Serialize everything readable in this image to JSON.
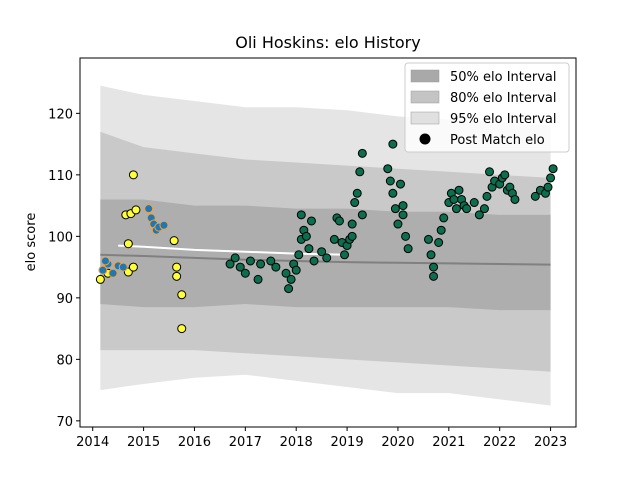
{
  "chart_data": {
    "type": "scatter",
    "title": "Oli Hoskins: elo History",
    "xlabel": "",
    "ylabel": "elo score",
    "xlim": [
      2013.75,
      2023.5
    ],
    "ylim": [
      69,
      129
    ],
    "x_ticks": [
      2014,
      2015,
      2016,
      2017,
      2018,
      2019,
      2020,
      2021,
      2022,
      2023
    ],
    "y_ticks": [
      70,
      80,
      90,
      100,
      110,
      120
    ],
    "grid": false,
    "legend_position": "top-right",
    "legend": [
      {
        "label": "50% elo Interval",
        "kind": "band",
        "color": "#a9a9a9"
      },
      {
        "label": "80% elo Interval",
        "kind": "band",
        "color": "#c4c4c4"
      },
      {
        "label": "95% elo Interval",
        "kind": "band",
        "color": "#e0e0e0"
      },
      {
        "label": "Post Match elo",
        "kind": "marker",
        "color": "#000000"
      }
    ],
    "series": [
      {
        "name": "95% elo Interval",
        "kind": "band",
        "color": "#e0e0e0",
        "x": [
          2014.15,
          2015.0,
          2016.0,
          2017.0,
          2018.0,
          2019.0,
          2020.0,
          2021.0,
          2022.0,
          2023.0
        ],
        "low": [
          75.0,
          76.0,
          77.0,
          77.5,
          76.5,
          75.5,
          74.5,
          74.5,
          73.5,
          72.5
        ],
        "high": [
          124.5,
          123.0,
          122.0,
          121.0,
          121.0,
          120.5,
          119.5,
          119.0,
          118.5,
          118.0
        ]
      },
      {
        "name": "80% elo Interval",
        "kind": "band",
        "color": "#c4c4c4",
        "x": [
          2014.15,
          2015.0,
          2016.0,
          2017.0,
          2018.0,
          2019.0,
          2020.0,
          2021.0,
          2022.0,
          2023.0
        ],
        "low": [
          81.5,
          81.5,
          81.5,
          81.0,
          80.5,
          80.0,
          79.5,
          79.0,
          78.5,
          78.0
        ],
        "high": [
          117.0,
          114.5,
          113.5,
          112.5,
          112.0,
          111.5,
          111.0,
          110.5,
          110.0,
          109.5
        ]
      },
      {
        "name": "50% elo Interval",
        "kind": "band",
        "color": "#a9a9a9",
        "x": [
          2014.15,
          2015.0,
          2016.0,
          2017.0,
          2018.0,
          2019.0,
          2020.0,
          2021.0,
          2022.0,
          2023.0
        ],
        "low": [
          89.0,
          88.5,
          88.5,
          89.0,
          88.5,
          88.5,
          88.5,
          88.5,
          88.0,
          88.0
        ],
        "high": [
          106.0,
          106.0,
          105.0,
          105.0,
          104.5,
          104.5,
          104.0,
          104.0,
          103.5,
          103.5
        ]
      },
      {
        "name": "Post Match elo",
        "kind": "points",
        "groups": [
          {
            "color": "#ffff33",
            "edge": "#000000",
            "points": [
              [
                2014.65,
                103.5
              ],
              [
                2014.75,
                103.7
              ],
              [
                2014.85,
                104.3
              ],
              [
                2014.8,
                110.0
              ],
              [
                2014.7,
                98.8
              ],
              [
                2014.7,
                94.2
              ],
              [
                2014.8,
                95.0
              ],
              [
                2015.6,
                99.3
              ],
              [
                2015.65,
                95.0
              ],
              [
                2015.65,
                93.5
              ],
              [
                2015.75,
                90.5
              ],
              [
                2015.75,
                85.0
              ],
              [
                2014.15,
                93.0
              ],
              [
                2014.3,
                94.0
              ]
            ]
          },
          {
            "color": "#1f78b4",
            "edge": "#f0a040",
            "points": [
              [
                2014.2,
                94.5
              ],
              [
                2014.3,
                95.5
              ],
              [
                2014.4,
                94.0
              ],
              [
                2014.5,
                95.2
              ],
              [
                2014.6,
                95.0
              ],
              [
                2014.25,
                96.0
              ],
              [
                2015.1,
                104.5
              ],
              [
                2015.15,
                103.0
              ],
              [
                2015.2,
                102.0
              ],
              [
                2015.25,
                101.0
              ],
              [
                2015.3,
                101.5
              ],
              [
                2015.4,
                101.8
              ]
            ]
          },
          {
            "color": "#0b6e4f",
            "edge": "#000000",
            "points": [
              [
                2016.7,
                95.5
              ],
              [
                2016.8,
                96.5
              ],
              [
                2016.9,
                95.0
              ],
              [
                2017.0,
                94.0
              ],
              [
                2017.1,
                96.0
              ],
              [
                2017.25,
                93.0
              ],
              [
                2017.3,
                95.5
              ],
              [
                2017.5,
                96.0
              ],
              [
                2017.6,
                95.0
              ],
              [
                2017.8,
                94.0
              ],
              [
                2017.85,
                91.5
              ],
              [
                2017.9,
                93.0
              ],
              [
                2017.95,
                95.5
              ],
              [
                2018.0,
                94.5
              ],
              [
                2018.05,
                97.0
              ],
              [
                2018.1,
                99.5
              ],
              [
                2018.1,
                103.5
              ],
              [
                2018.15,
                101.0
              ],
              [
                2018.2,
                100.0
              ],
              [
                2018.25,
                98.0
              ],
              [
                2018.3,
                102.5
              ],
              [
                2018.35,
                96.0
              ],
              [
                2018.5,
                97.5
              ],
              [
                2018.6,
                96.5
              ],
              [
                2018.75,
                99.5
              ],
              [
                2018.8,
                103.0
              ],
              [
                2018.85,
                102.5
              ],
              [
                2018.9,
                99.0
              ],
              [
                2018.95,
                97.0
              ],
              [
                2019.0,
                98.5
              ],
              [
                2019.05,
                99.5
              ],
              [
                2019.1,
                100.0
              ],
              [
                2019.1,
                102.0
              ],
              [
                2019.15,
                105.5
              ],
              [
                2019.2,
                107.0
              ],
              [
                2019.25,
                110.5
              ],
              [
                2019.3,
                113.5
              ],
              [
                2019.3,
                103.5
              ],
              [
                2019.8,
                111.0
              ],
              [
                2019.85,
                109.0
              ],
              [
                2019.9,
                107.0
              ],
              [
                2019.95,
                104.5
              ],
              [
                2020.0,
                102.0
              ],
              [
                2020.05,
                108.5
              ],
              [
                2020.1,
                105.0
              ],
              [
                2020.1,
                103.5
              ],
              [
                2019.9,
                115.0
              ],
              [
                2020.15,
                100.0
              ],
              [
                2020.2,
                98.0
              ],
              [
                2020.6,
                99.5
              ],
              [
                2020.65,
                97.0
              ],
              [
                2020.7,
                95.0
              ],
              [
                2020.7,
                93.5
              ],
              [
                2020.8,
                99.0
              ],
              [
                2020.85,
                101.0
              ],
              [
                2020.9,
                103.0
              ],
              [
                2021.0,
                105.5
              ],
              [
                2021.05,
                107.0
              ],
              [
                2021.1,
                106.0
              ],
              [
                2021.15,
                104.5
              ],
              [
                2021.2,
                107.5
              ],
              [
                2021.25,
                106.0
              ],
              [
                2021.3,
                105.0
              ],
              [
                2021.35,
                104.5
              ],
              [
                2021.5,
                105.5
              ],
              [
                2021.6,
                103.5
              ],
              [
                2021.7,
                104.5
              ],
              [
                2021.75,
                106.5
              ],
              [
                2021.8,
                110.5
              ],
              [
                2021.85,
                108.0
              ],
              [
                2021.9,
                109.0
              ],
              [
                2022.0,
                108.5
              ],
              [
                2022.05,
                109.5
              ],
              [
                2022.1,
                110.0
              ],
              [
                2022.15,
                107.5
              ],
              [
                2022.2,
                108.0
              ],
              [
                2022.25,
                107.0
              ],
              [
                2022.3,
                106.0
              ],
              [
                2022.7,
                106.5
              ],
              [
                2022.8,
                107.5
              ],
              [
                2022.9,
                107.0
              ],
              [
                2022.95,
                108.0
              ],
              [
                2023.0,
                109.5
              ],
              [
                2023.05,
                111.0
              ]
            ]
          }
        ]
      }
    ],
    "lines": [
      {
        "name": "median-trend-1",
        "color": "#808080",
        "x": [
          2014.15,
          2015.0,
          2016.0,
          2017.0,
          2018.0,
          2019.0,
          2020.0,
          2021.0,
          2022.0,
          2023.0
        ],
        "y": [
          97.0,
          96.8,
          96.5,
          96.2,
          96.0,
          95.8,
          95.7,
          95.6,
          95.5,
          95.4
        ]
      },
      {
        "name": "median-trend-2",
        "color": "#ffffff",
        "x": [
          2014.5,
          2015.0,
          2016.0,
          2017.0,
          2018.0,
          2019.0
        ],
        "y": [
          98.5,
          98.3,
          97.8,
          97.5,
          97.2,
          97.0
        ]
      }
    ]
  }
}
